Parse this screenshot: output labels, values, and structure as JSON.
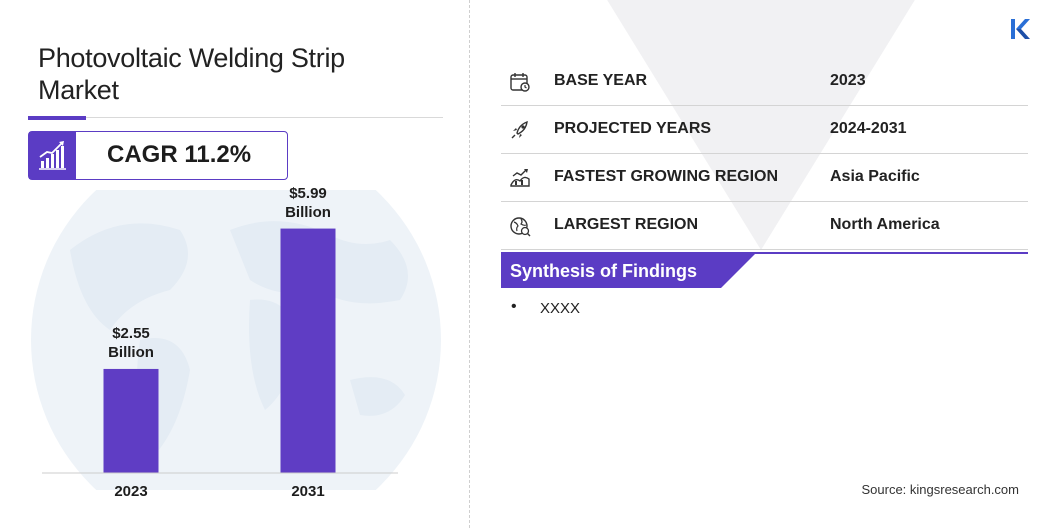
{
  "title": "Photovoltaic Welding Strip Market",
  "cagr": "CAGR 11.2%",
  "colors": {
    "accent": "#5b3cc4",
    "bar": "#5f3dc4",
    "rule": "#d4d4d4"
  },
  "chart_data": {
    "type": "bar",
    "categories": [
      "2023",
      "2031"
    ],
    "values": [
      2.55,
      5.99
    ],
    "data_labels": [
      "$2.55\nBillion",
      "$5.99\nBillion"
    ],
    "data_labels_lines": [
      [
        "$2.55",
        "Billion"
      ],
      [
        "$5.99",
        "Billion"
      ]
    ],
    "title": "",
    "xlabel": "",
    "ylabel": "",
    "ylim": [
      0,
      6.2
    ],
    "grid": false,
    "legend": "none"
  },
  "info": [
    {
      "icon": "calendar-icon",
      "key": "BASE YEAR",
      "value": "2023"
    },
    {
      "icon": "rocket-icon",
      "key": "PROJECTED YEARS",
      "value": "2024-2031"
    },
    {
      "icon": "growth-region-icon",
      "key": "FASTEST GROWING REGION",
      "value": "Asia Pacific"
    },
    {
      "icon": "globe-icon",
      "key": "LARGEST REGION",
      "value": "North America"
    }
  ],
  "synthesis": {
    "title": "Synthesis of Findings",
    "bullets": [
      "XXXX"
    ]
  },
  "source": "Source: kingsresearch.com"
}
